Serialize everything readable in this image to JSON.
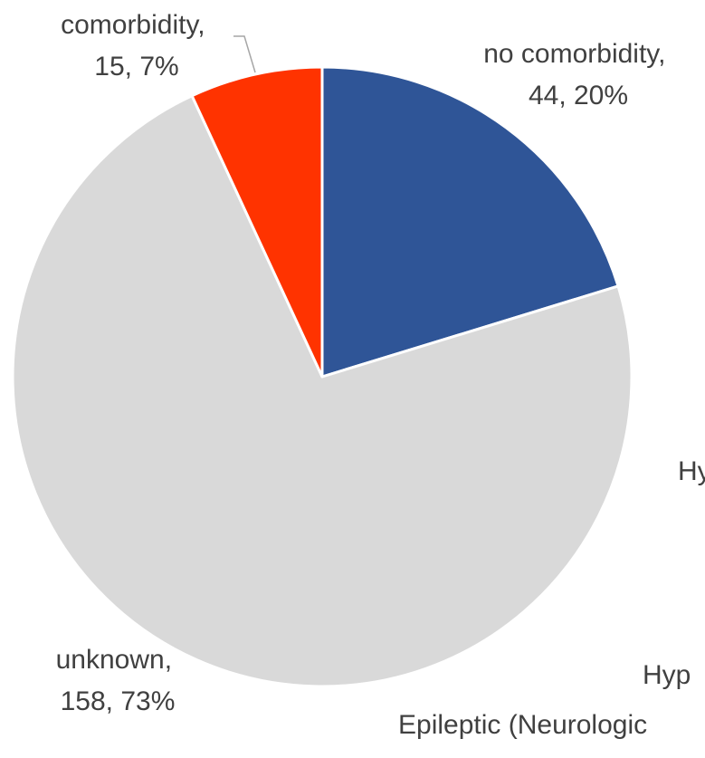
{
  "chart_data": {
    "type": "pie",
    "title": "",
    "slices": [
      {
        "category": "no comorbidity",
        "value": 44,
        "percent": "20%",
        "color": "#2f5597"
      },
      {
        "category": "unknown",
        "value": 158,
        "percent": "73%",
        "color": "#d9d9d9"
      },
      {
        "category": "comorbidity",
        "value": 15,
        "percent": "7%",
        "color": "#ff3300"
      }
    ],
    "labels": [
      {
        "line1": "no comorbidity,",
        "line2": "44, 20%"
      },
      {
        "line1": "unknown,",
        "line2": "158, 73%"
      },
      {
        "line1": "comorbidity,",
        "line2": "15, 7%"
      }
    ],
    "other_text": [
      "Hy",
      "Hyp",
      "Epileptic (Neurologic"
    ],
    "start_angle": "12 o'clock",
    "direction": "clockwise",
    "legend": "none",
    "text_color": "#404040",
    "leader_line_color": "#a6a6a6",
    "slice_border_color": "#ffffff"
  }
}
